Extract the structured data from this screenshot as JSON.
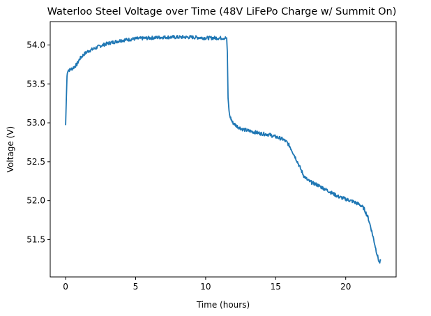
{
  "chart_data": {
    "type": "line",
    "title": "Waterloo Steel Voltage over Time (48V LiFePo Charge w/ Summit On)",
    "xlabel": "Time (hours)",
    "ylabel": "Voltage (V)",
    "xlim": [
      -1.1,
      23.6
    ],
    "ylim": [
      51.02,
      54.3
    ],
    "xticks": [
      0,
      5,
      10,
      15,
      20
    ],
    "yticks": [
      51.5,
      52.0,
      52.5,
      53.0,
      53.5,
      54.0
    ],
    "xtick_labels": [
      "0",
      "5",
      "10",
      "15",
      "20"
    ],
    "ytick_labels": [
      "51.5",
      "52.0",
      "52.5",
      "53.0",
      "53.5",
      "54.0"
    ],
    "grid": false,
    "line_color": "#1f77b4",
    "series": [
      {
        "x": [
          0,
          0.05,
          0.1,
          0.15,
          0.2,
          0.3,
          0.5,
          0.8,
          1.0,
          1.3,
          1.6,
          2.0,
          2.5,
          3.0,
          3.5,
          4.0,
          5.0,
          6.0,
          7.0,
          8.0,
          9.0,
          10.0,
          11.0,
          11.5,
          11.55,
          11.6,
          11.7,
          11.9,
          12.2,
          12.6,
          13.0,
          13.5,
          14.0,
          14.5,
          15.0,
          15.5,
          15.8,
          16.0,
          16.2,
          16.5,
          16.8,
          17.0,
          17.3,
          17.6,
          18.0,
          18.5,
          19.0,
          19.5,
          20.0,
          20.5,
          21.0,
          21.3,
          21.6,
          21.8,
          22.0,
          22.2,
          22.4,
          22.5
        ],
        "y": [
          52.97,
          53.3,
          53.6,
          53.67,
          53.68,
          53.68,
          53.7,
          53.75,
          53.82,
          53.88,
          53.92,
          53.95,
          53.99,
          54.02,
          54.04,
          54.06,
          54.08,
          54.09,
          54.1,
          54.1,
          54.1,
          54.09,
          54.09,
          54.09,
          53.9,
          53.3,
          53.1,
          53.01,
          52.96,
          52.92,
          52.9,
          52.88,
          52.86,
          52.85,
          52.82,
          52.79,
          52.75,
          52.7,
          52.63,
          52.52,
          52.4,
          52.32,
          52.26,
          52.23,
          52.2,
          52.15,
          52.1,
          52.05,
          52.02,
          51.99,
          51.95,
          51.9,
          51.78,
          51.65,
          51.5,
          51.34,
          51.2,
          51.23
        ]
      }
    ]
  }
}
